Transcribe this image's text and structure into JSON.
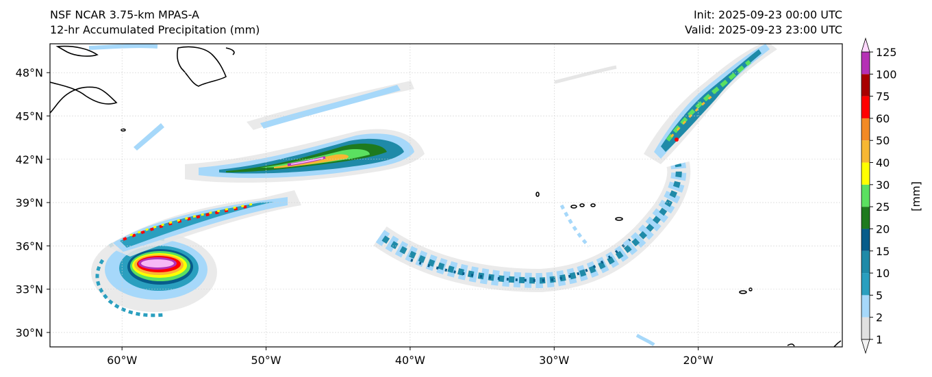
{
  "header": {
    "model": "NSF NCAR 3.75-km MPAS-A",
    "field": "12-hr Accumulated Precipitation (mm)",
    "init": "Init: 2025-09-23 00:00 UTC",
    "valid": "Valid: 2025-09-23 23:00 UTC"
  },
  "map": {
    "lon_range": [
      -65,
      -10
    ],
    "lat_range": [
      29,
      50
    ],
    "lon_ticks": [
      {
        "value": -60,
        "label": "60°W"
      },
      {
        "value": -50,
        "label": "50°W"
      },
      {
        "value": -40,
        "label": "40°W"
      },
      {
        "value": -30,
        "label": "30°W"
      },
      {
        "value": -20,
        "label": "20°W"
      }
    ],
    "lat_ticks": [
      {
        "value": 48,
        "label": "48°N"
      },
      {
        "value": 45,
        "label": "45°N"
      },
      {
        "value": 42,
        "label": "42°N"
      },
      {
        "value": 39,
        "label": "39°N"
      },
      {
        "value": 36,
        "label": "36°N"
      },
      {
        "value": 33,
        "label": "33°N"
      },
      {
        "value": 30,
        "label": "30°N"
      }
    ],
    "gridlines": true
  },
  "colorbar": {
    "unit_label": "[mm]",
    "levels": [
      {
        "value": "1",
        "color": "#e0e0e0"
      },
      {
        "value": "2",
        "color": "#a6d8fa"
      },
      {
        "value": "5",
        "color": "#2a9fbf"
      },
      {
        "value": "10",
        "color": "#1f8aa8"
      },
      {
        "value": "15",
        "color": "#075c8a"
      },
      {
        "value": "20",
        "color": "#1e7a1e"
      },
      {
        "value": "25",
        "color": "#5be060"
      },
      {
        "value": "30",
        "color": "#ffff00"
      },
      {
        "value": "40",
        "color": "#f7b733"
      },
      {
        "value": "50",
        "color": "#f28a25"
      },
      {
        "value": "60",
        "color": "#ff0000"
      },
      {
        "value": "75",
        "color": "#a80000"
      },
      {
        "value": "100",
        "color": "#b530b5"
      },
      {
        "value": "125",
        "color": "#f6b8f6"
      }
    ],
    "under_color": "#f2f2f2",
    "over_color": "#ffd8ff"
  }
}
